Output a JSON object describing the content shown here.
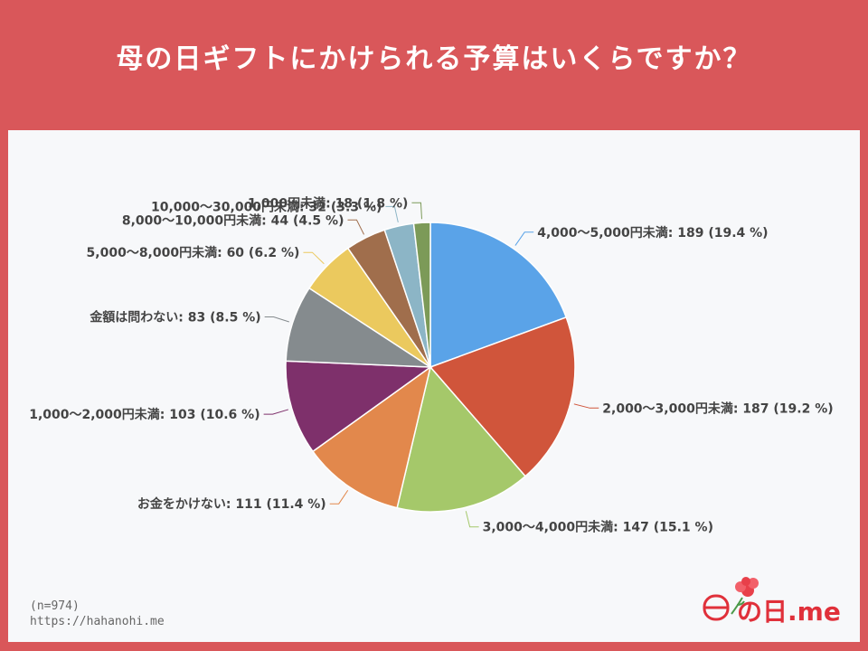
{
  "header": {
    "title": "母の日ギフトにかけられる予算はいくらですか？"
  },
  "notes": {
    "sample": "(n=974)",
    "url": "https://hahanohi.me"
  },
  "logo": {
    "text": "の日.me",
    "accent": "#e0303a"
  },
  "chart_data": {
    "type": "pie",
    "slices": [
      {
        "label": "4,000〜5,000円未満",
        "value": 189,
        "percent": "19.4 %",
        "color": "#5aa3e8"
      },
      {
        "label": "2,000〜3,000円未満",
        "value": 187,
        "percent": "19.2 %",
        "color": "#d0553b"
      },
      {
        "label": "3,000〜4,000円未満",
        "value": 147,
        "percent": "15.1 %",
        "color": "#a5c86a"
      },
      {
        "label": "お金をかけない",
        "value": 111,
        "percent": "11.4 %",
        "color": "#e2884c"
      },
      {
        "label": "1,000〜2,000円未満",
        "value": 103,
        "percent": "10.6 %",
        "color": "#7e306b"
      },
      {
        "label": "金額は問わない",
        "value": 83,
        "percent": "8.5 %",
        "color": "#858b8e"
      },
      {
        "label": "5,000〜8,000円未満",
        "value": 60,
        "percent": "6.2 %",
        "color": "#ebc95e"
      },
      {
        "label": "8,000〜10,000円未満",
        "value": 44,
        "percent": "4.5 %",
        "color": "#a06e4c"
      },
      {
        "label": "10,000〜30,000円未満",
        "value": 32,
        "percent": "3.3 %",
        "color": "#8cb5c6"
      },
      {
        "label": "1,000円未満",
        "value": 18,
        "percent": "1.8 %",
        "color": "#7c9a58"
      }
    ]
  }
}
